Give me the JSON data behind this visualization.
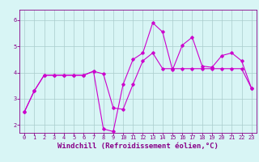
{
  "xlabel": "Windchill (Refroidissement éolien,°C)",
  "xlim": [
    -0.5,
    23.5
  ],
  "ylim": [
    1.7,
    6.4
  ],
  "yticks": [
    2,
    3,
    4,
    5,
    6
  ],
  "xticks": [
    0,
    1,
    2,
    3,
    4,
    5,
    6,
    7,
    8,
    9,
    10,
    11,
    12,
    13,
    14,
    15,
    16,
    17,
    18,
    19,
    20,
    21,
    22,
    23
  ],
  "line1_x": [
    0,
    1,
    2,
    3,
    4,
    5,
    6,
    7,
    8,
    9,
    10,
    11,
    12,
    13,
    14,
    15,
    16,
    17,
    18,
    19,
    20,
    21,
    22,
    23
  ],
  "line1_y": [
    2.5,
    3.3,
    3.9,
    3.9,
    3.9,
    3.9,
    3.9,
    4.05,
    3.95,
    2.65,
    2.6,
    3.55,
    4.45,
    4.75,
    4.15,
    4.15,
    4.15,
    4.15,
    4.15,
    4.15,
    4.15,
    4.15,
    4.15,
    3.4
  ],
  "line2_x": [
    0,
    1,
    2,
    3,
    4,
    5,
    6,
    7,
    8,
    9,
    10,
    11,
    12,
    13,
    14,
    15,
    16,
    17,
    18,
    19,
    20,
    21,
    22,
    23
  ],
  "line2_y": [
    2.5,
    3.3,
    3.9,
    3.9,
    3.9,
    3.9,
    3.9,
    4.05,
    1.85,
    1.75,
    3.55,
    4.5,
    4.75,
    5.9,
    5.55,
    4.1,
    5.05,
    5.35,
    4.25,
    4.2,
    4.65,
    4.75,
    4.45,
    3.4
  ],
  "line_color": "#cc00cc",
  "marker": "D",
  "marker_size": 1.8,
  "line_width": 0.8,
  "bg_color": "#d8f5f5",
  "grid_color": "#aacccc",
  "axis_color": "#880088",
  "tick_color": "#880088",
  "label_color": "#880088",
  "tick_fontsize": 5.0,
  "label_fontsize": 6.5
}
